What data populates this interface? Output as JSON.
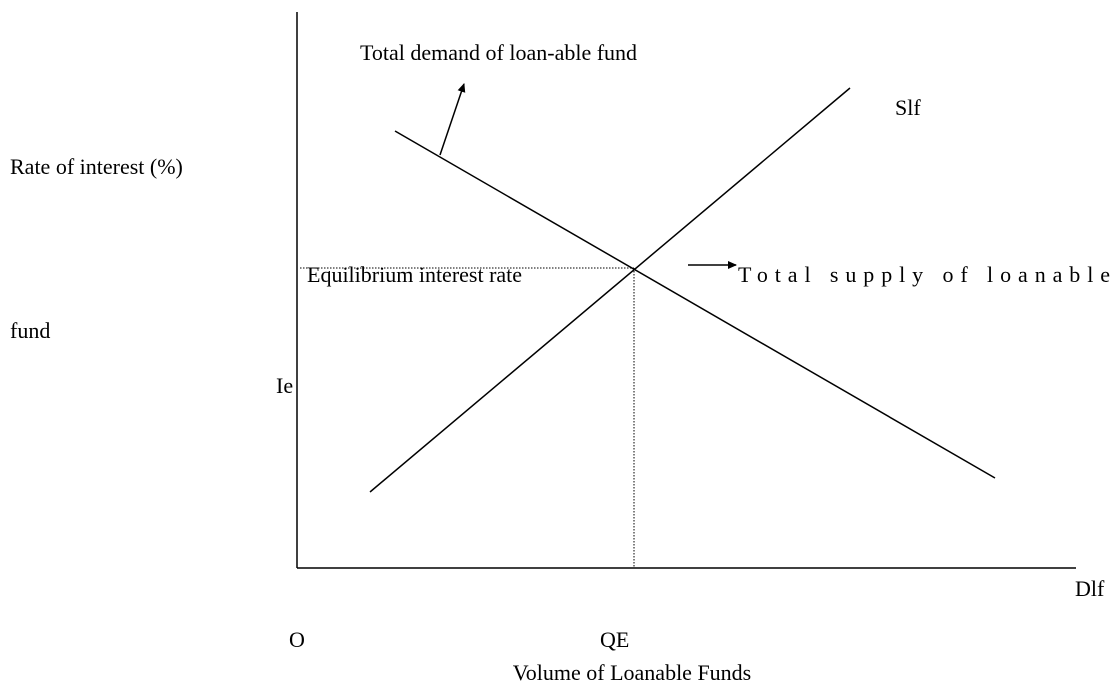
{
  "title": "Total demand of loan-able fund",
  "supply_curve_label": "Slf",
  "y_axis_label": "Rate of interest (%)",
  "equilibrium_label": "Equilibrium interest rate",
  "supply_label": "Total supply of loanable",
  "supply_label_continued": "fund",
  "equilibrium_rate_label": "Ie",
  "demand_curve_label": "Dlf",
  "origin_label": "O",
  "equilibrium_quantity_label": "QE",
  "x_axis_label": "Volume of Loanable Funds"
}
